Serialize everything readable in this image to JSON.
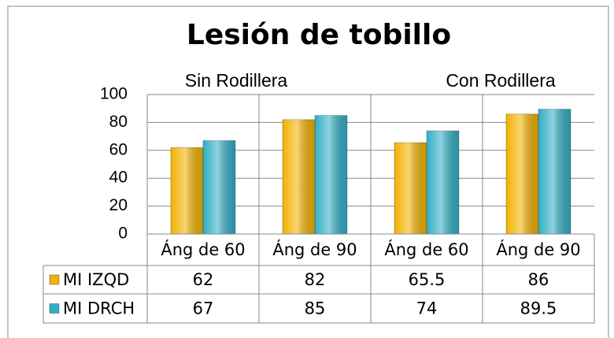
{
  "chart_data": {
    "type": "bar",
    "title": "Lesión de tobillo",
    "annotations": [
      "Sin Rodillera",
      "Con Rodillera"
    ],
    "categories": [
      "Áng de 60",
      "Áng de 90",
      "Áng de 60",
      "Áng de 90"
    ],
    "series": [
      {
        "name": "MI IZQD",
        "color": "#f2b200",
        "values": [
          62,
          82,
          65.5,
          86
        ]
      },
      {
        "name": "MI DRCH",
        "color": "#31afc6",
        "values": [
          67,
          85,
          74,
          89.5
        ]
      }
    ],
    "ylim": [
      0,
      100
    ],
    "yticks": [
      0,
      20,
      40,
      60,
      80,
      100
    ],
    "grid": true,
    "data_table": true
  }
}
